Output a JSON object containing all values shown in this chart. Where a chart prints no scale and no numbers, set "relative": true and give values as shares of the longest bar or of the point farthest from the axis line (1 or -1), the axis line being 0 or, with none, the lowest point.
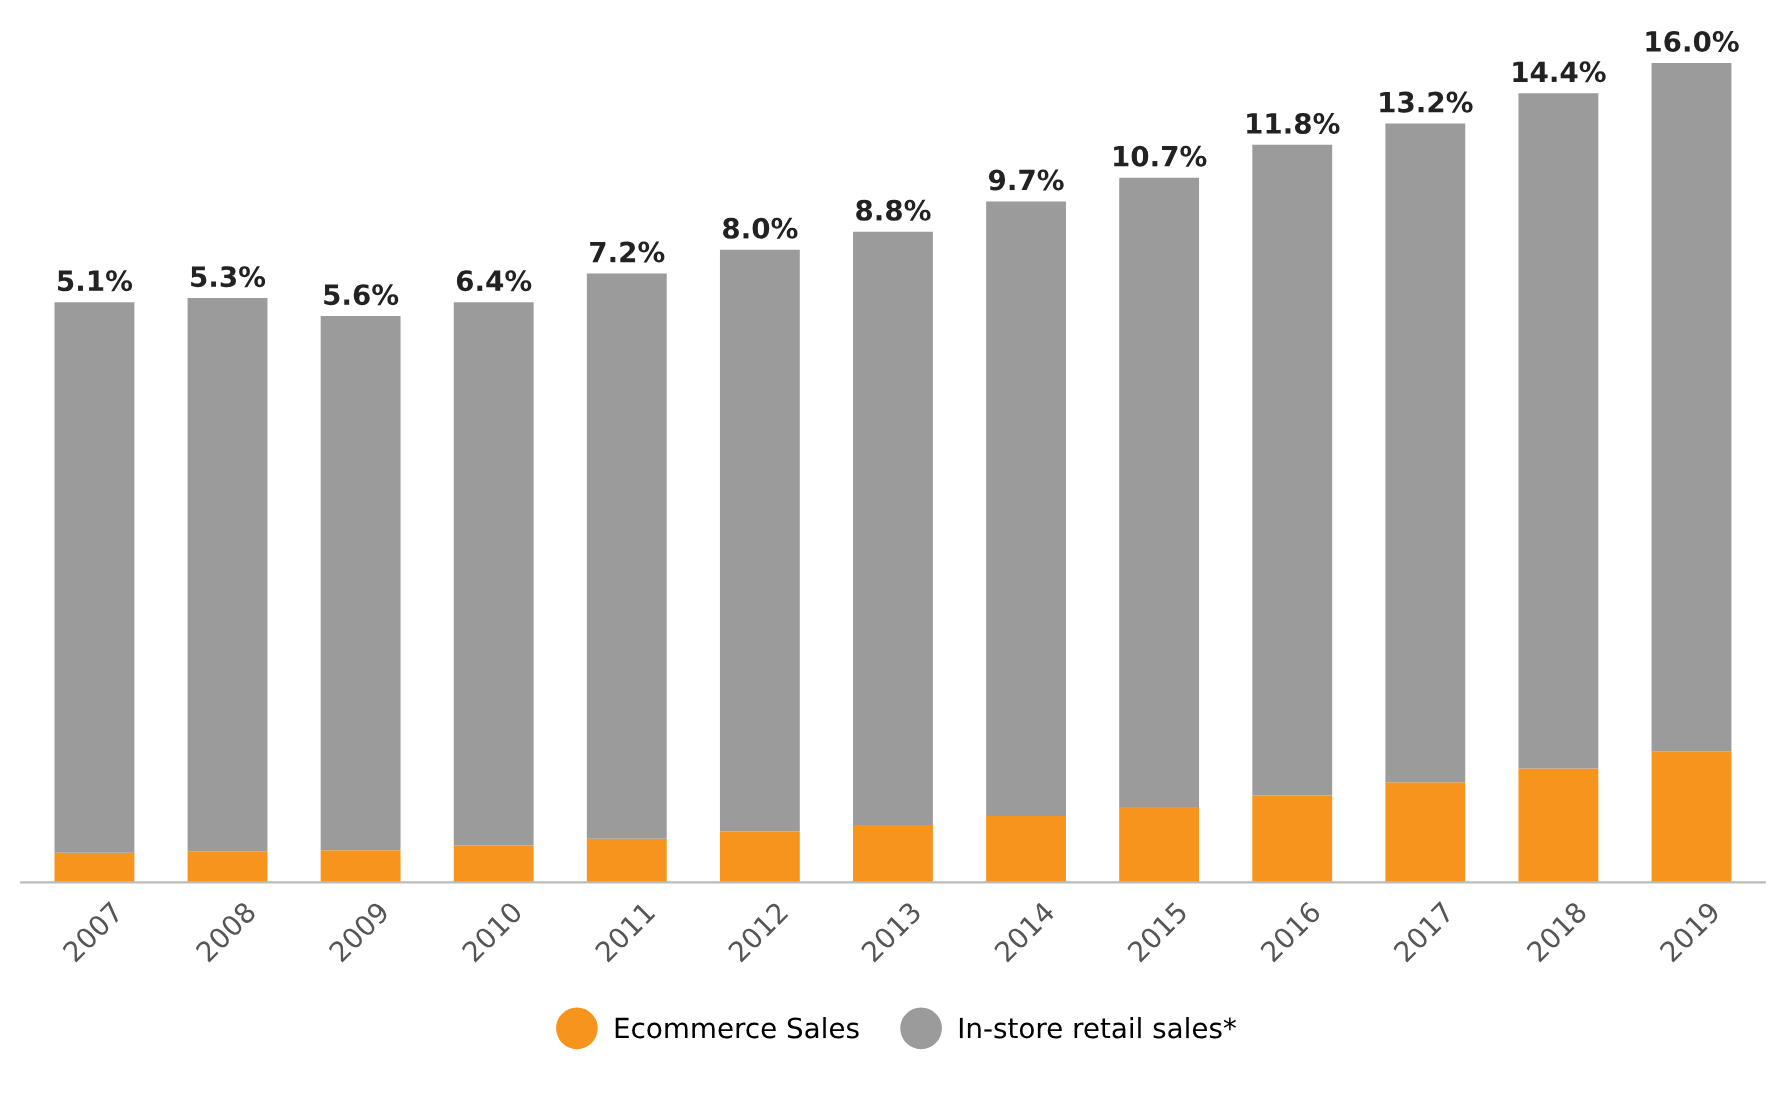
{
  "chart_data": {
    "type": "bar",
    "stacked": true,
    "relative": true,
    "categories": [
      "2007",
      "2008",
      "2009",
      "2010",
      "2011",
      "2012",
      "2013",
      "2014",
      "2015",
      "2016",
      "2017",
      "2018",
      "2019"
    ],
    "series": [
      {
        "name": "Ecommerce Sales",
        "color": "#f7941d",
        "values": [
          0.036,
          0.038,
          0.039,
          0.045,
          0.053,
          0.062,
          0.07,
          0.081,
          0.092,
          0.106,
          0.122,
          0.139,
          0.16
        ]
      },
      {
        "name": "In-store retail sales*",
        "color": "#9b9b9b",
        "values": [
          0.672,
          0.675,
          0.652,
          0.663,
          0.69,
          0.71,
          0.724,
          0.75,
          0.768,
          0.794,
          0.804,
          0.824,
          0.84
        ]
      }
    ],
    "annotations": [
      {
        "text": "5.1%",
        "x": "2007",
        "y": 0.708
      },
      {
        "text": "5.3%",
        "x": "2008",
        "y": 0.713
      },
      {
        "text": "5.6%",
        "x": "2009",
        "y": 0.691
      },
      {
        "text": "6.4%",
        "x": "2010",
        "y": 0.708
      },
      {
        "text": "7.2%",
        "x": "2011",
        "y": 0.743
      },
      {
        "text": "8.0%",
        "x": "2012",
        "y": 0.772
      },
      {
        "text": "8.8%",
        "x": "2013",
        "y": 0.794
      },
      {
        "text": "9.7%",
        "x": "2014",
        "y": 0.831
      },
      {
        "text": "10.7%",
        "x": "2015",
        "y": 0.86
      },
      {
        "text": "11.8%",
        "x": "2016",
        "y": 0.9
      },
      {
        "text": "13.2%",
        "x": "2017",
        "y": 0.926
      },
      {
        "text": "14.4%",
        "x": "2018",
        "y": 0.963
      },
      {
        "text": "16.0%",
        "x": "2019",
        "y": 1.0
      }
    ],
    "legend": "bottom",
    "grid": false
  }
}
